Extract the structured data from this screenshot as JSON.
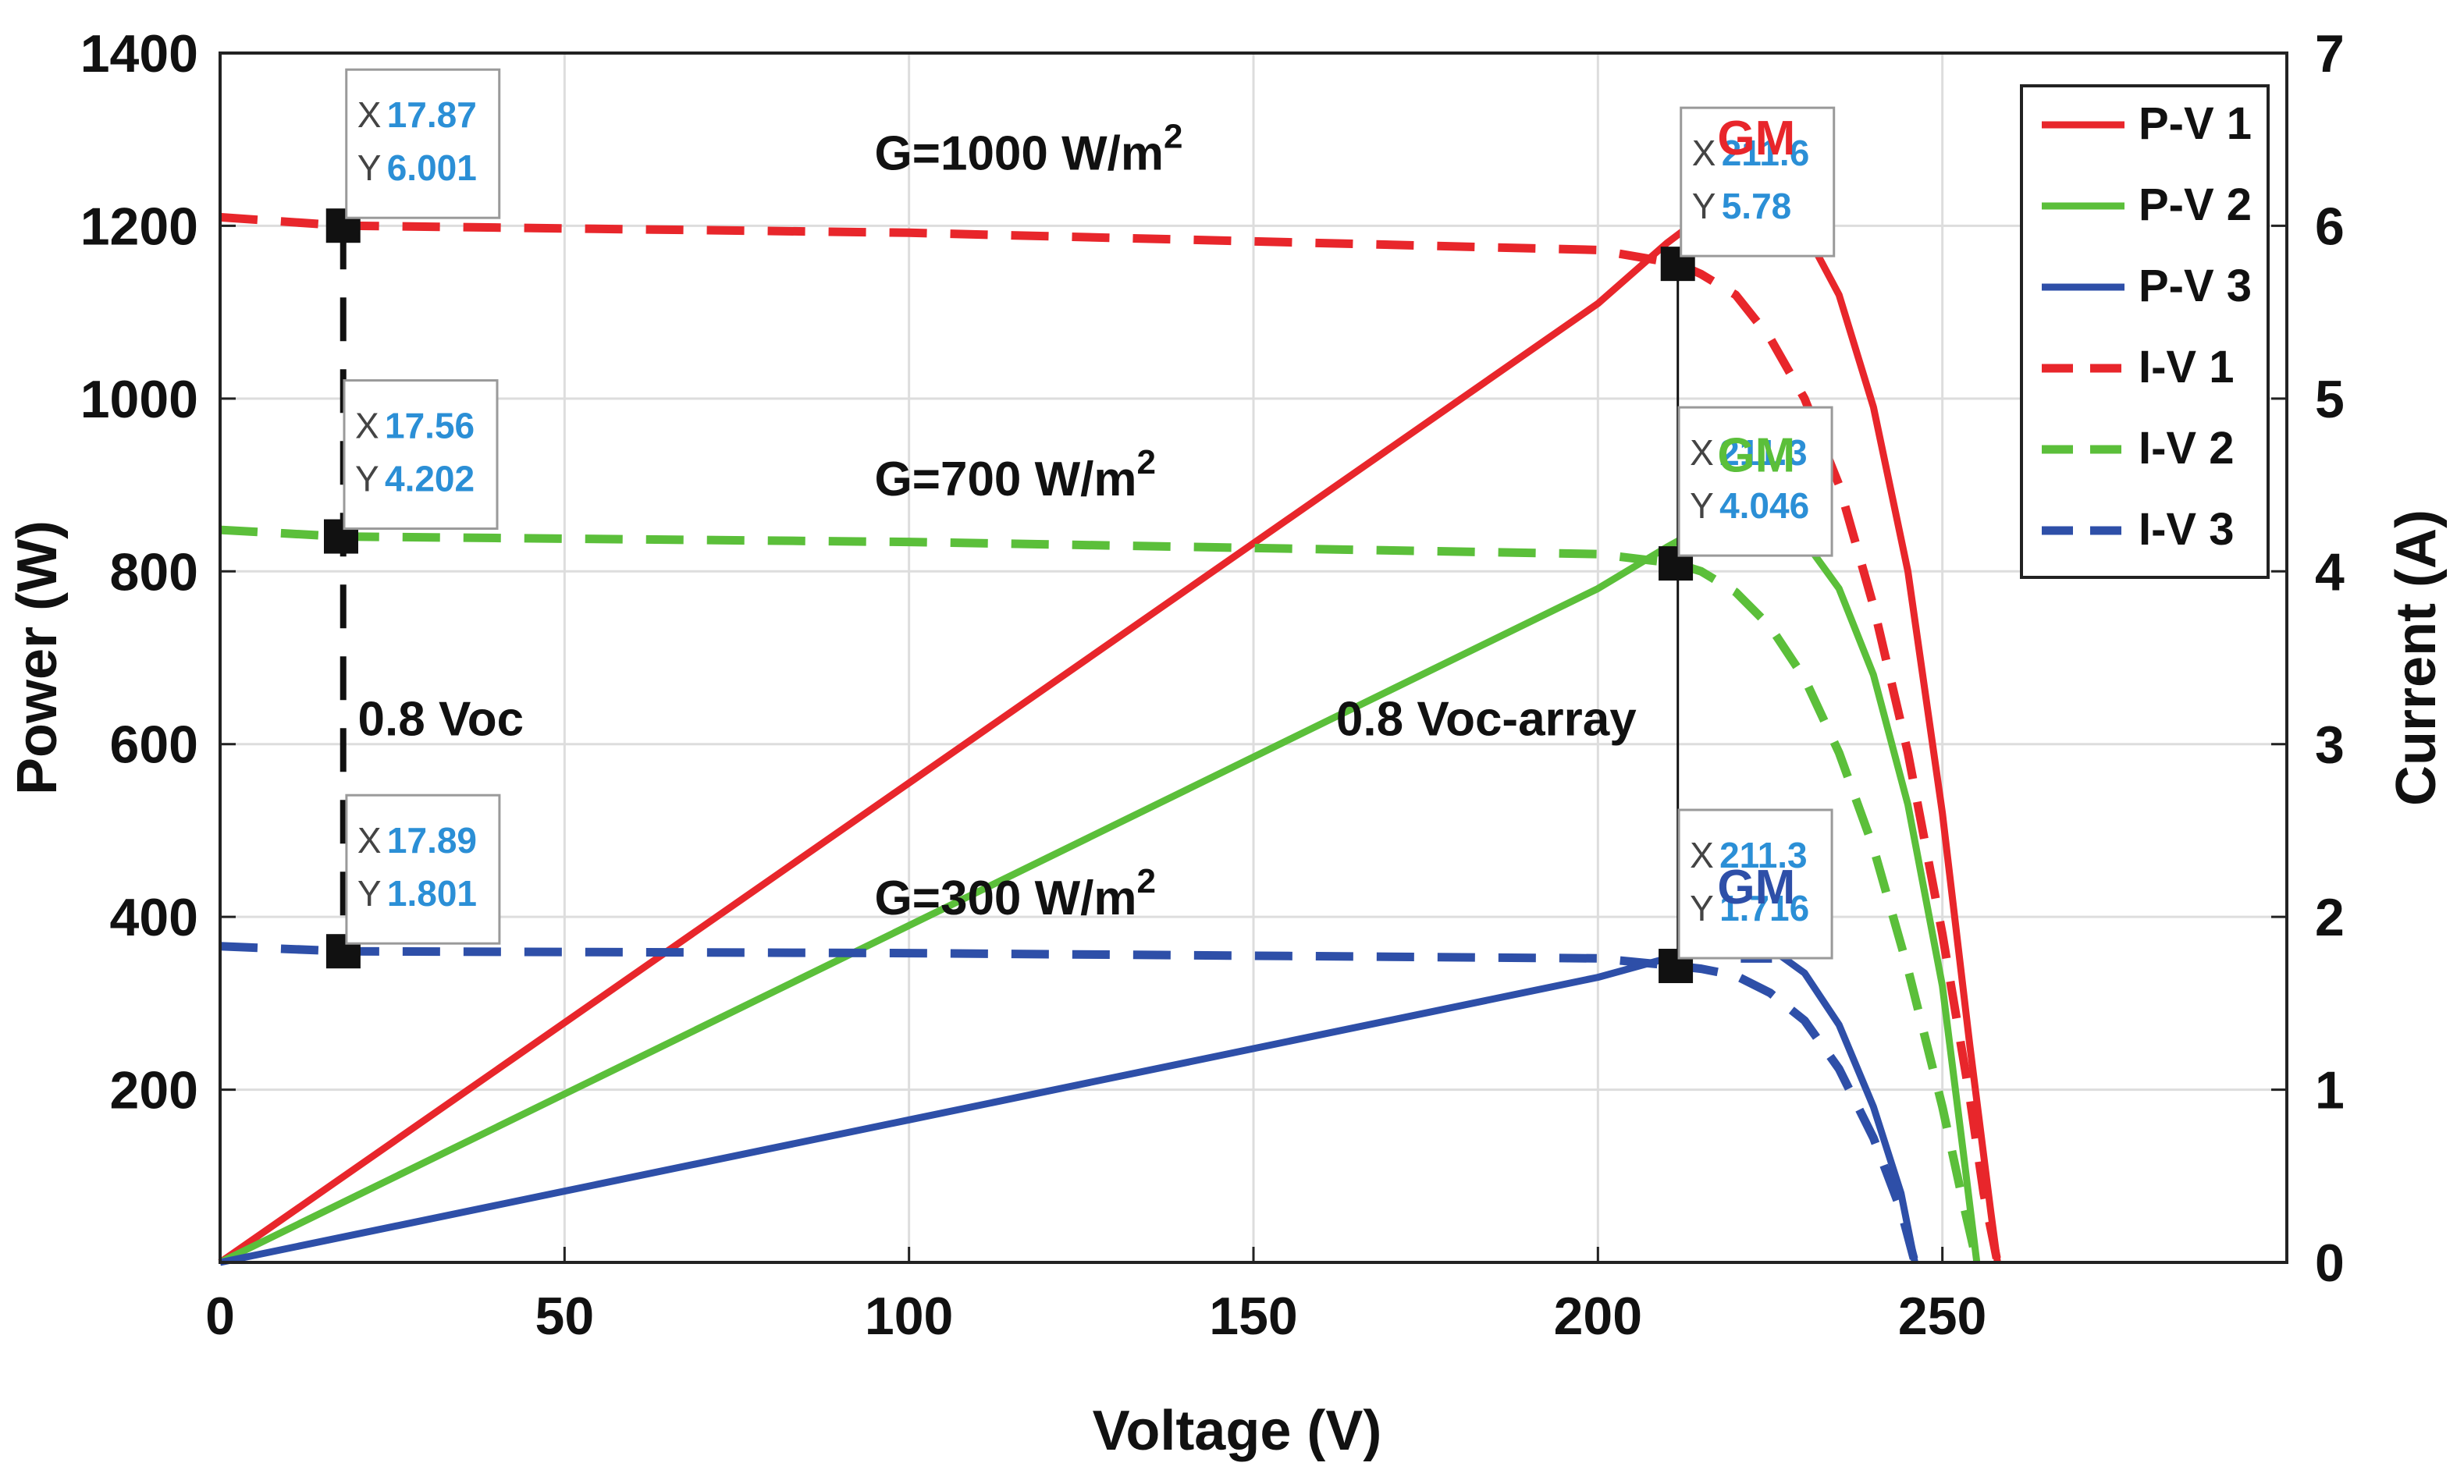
{
  "chart_data": {
    "type": "line",
    "xlabel": "Voltage (V)",
    "ylabel": "Power (W)",
    "y2label": "Current (A)",
    "xlim": [
      0,
      300
    ],
    "ylim": [
      0,
      1400
    ],
    "y2lim": [
      0,
      7
    ],
    "xticks": [
      "0",
      "50",
      "100",
      "150",
      "200",
      "250"
    ],
    "xtick_values": [
      0,
      50,
      100,
      150,
      200,
      250
    ],
    "yticks": [
      "200",
      "400",
      "600",
      "800",
      "1000",
      "1200",
      "1400"
    ],
    "ytick_values": [
      200,
      400,
      600,
      800,
      1000,
      1200,
      1400
    ],
    "y2ticks": [
      "0",
      "1",
      "2",
      "3",
      "4",
      "5",
      "6",
      "7"
    ],
    "y2tick_values": [
      0,
      1,
      2,
      3,
      4,
      5,
      6,
      7
    ],
    "grid": true,
    "legend_position": "top-right",
    "colors": {
      "red": "#e8262b",
      "green": "#5bbf3a",
      "blue": "#2e4fa8"
    },
    "series": [
      {
        "name": "P-V 1",
        "axis": "left",
        "style": "solid",
        "color": "#e8262b",
        "x": [
          0,
          100,
          200,
          210,
          215,
          220,
          223,
          226,
          230,
          235,
          240,
          245,
          250,
          254,
          257,
          258
        ],
        "y": [
          0,
          555,
          1110,
          1180,
          1210,
          1228,
          1232,
          1225,
          1195,
          1120,
          990,
          800,
          520,
          250,
          60,
          0
        ]
      },
      {
        "name": "P-V 2",
        "axis": "left",
        "style": "solid",
        "color": "#5bbf3a",
        "x": [
          0,
          100,
          200,
          210,
          215,
          220,
          223,
          226,
          230,
          235,
          240,
          245,
          250,
          253,
          255
        ],
        "y": [
          0,
          390,
          780,
          828,
          850,
          862,
          865,
          860,
          835,
          780,
          680,
          530,
          320,
          130,
          0
        ]
      },
      {
        "name": "P-V 3",
        "axis": "left",
        "style": "solid",
        "color": "#2e4fa8",
        "x": [
          0,
          100,
          200,
          210,
          215,
          220,
          223,
          226,
          230,
          235,
          240,
          244,
          246
        ],
        "y": [
          0,
          165,
          330,
          352,
          360,
          364,
          365,
          358,
          335,
          275,
          180,
          80,
          0
        ]
      },
      {
        "name": "I-V 1",
        "axis": "right",
        "style": "dashed",
        "color": "#e8262b",
        "x": [
          0,
          17.87,
          100,
          200,
          211.6,
          215,
          220,
          225,
          230,
          235,
          240,
          245,
          250,
          254,
          256,
          258
        ],
        "y": [
          6.05,
          6.001,
          5.96,
          5.86,
          5.78,
          5.72,
          5.6,
          5.35,
          5.0,
          4.5,
          3.8,
          2.95,
          1.9,
          0.95,
          0.4,
          0
        ]
      },
      {
        "name": "I-V 2",
        "axis": "right",
        "style": "dashed",
        "color": "#5bbf3a",
        "x": [
          0,
          17.56,
          100,
          200,
          211.3,
          215,
          220,
          225,
          230,
          235,
          240,
          245,
          250,
          253,
          255
        ],
        "y": [
          4.24,
          4.202,
          4.17,
          4.1,
          4.046,
          4.0,
          3.88,
          3.68,
          3.38,
          2.95,
          2.4,
          1.7,
          0.9,
          0.35,
          0
        ]
      },
      {
        "name": "I-V 3",
        "axis": "right",
        "style": "dashed",
        "color": "#2e4fa8",
        "x": [
          0,
          17.89,
          100,
          200,
          211.3,
          215,
          220,
          225,
          230,
          235,
          240,
          244,
          246
        ],
        "y": [
          1.83,
          1.801,
          1.79,
          1.76,
          1.716,
          1.7,
          1.66,
          1.56,
          1.4,
          1.12,
          0.72,
          0.3,
          0
        ]
      }
    ],
    "datatips": [
      {
        "x_label": "X",
        "y_label": "Y",
        "x": "17.87",
        "y": "6.001",
        "vx": 17.87,
        "vy": 6.001,
        "color": "#e8262b"
      },
      {
        "x_label": "X",
        "y_label": "Y",
        "x": "17.56",
        "y": "4.202",
        "vx": 17.56,
        "vy": 4.202,
        "color": "#5bbf3a"
      },
      {
        "x_label": "X",
        "y_label": "Y",
        "x": "17.89",
        "y": "1.801",
        "vx": 17.89,
        "vy": 1.801,
        "color": "#2e4fa8"
      },
      {
        "x_label": "X",
        "y_label": "Y",
        "x": "211.6",
        "y": "5.78",
        "vx": 211.6,
        "vy": 5.78,
        "color": "#e8262b"
      },
      {
        "x_label": "X",
        "y_label": "Y",
        "x": "211.3",
        "y": "4.046",
        "vx": 211.3,
        "vy": 4.046,
        "color": "#5bbf3a"
      },
      {
        "x_label": "X",
        "y_label": "Y",
        "x": "211.3",
        "y": "1.716",
        "vx": 211.3,
        "vy": 1.716,
        "color": "#2e4fa8"
      }
    ],
    "gm_points": [
      {
        "label": "GM",
        "x": 223,
        "y": 1232,
        "color": "#e8262b"
      },
      {
        "label": "GM",
        "x": 223,
        "y": 865,
        "color": "#5bbf3a"
      },
      {
        "label": "GM",
        "x": 223,
        "y": 365,
        "color": "#2e4fa8"
      }
    ],
    "annotations": {
      "g1000": {
        "base": "G=1000 W/m",
        "sup": "2",
        "x": 95,
        "y": 1265
      },
      "g700": {
        "base": "G=700 W/m",
        "sup": "2",
        "x": 95,
        "y": 888
      },
      "g300": {
        "base": "G=300 W/m",
        "sup": "2",
        "x": 95,
        "y": 403
      },
      "voc": {
        "text": "0.8 Voc",
        "x": 20,
        "y": 610
      },
      "voc_array": {
        "text": "0.8 Voc-array",
        "x": 162,
        "y": 610
      }
    }
  }
}
